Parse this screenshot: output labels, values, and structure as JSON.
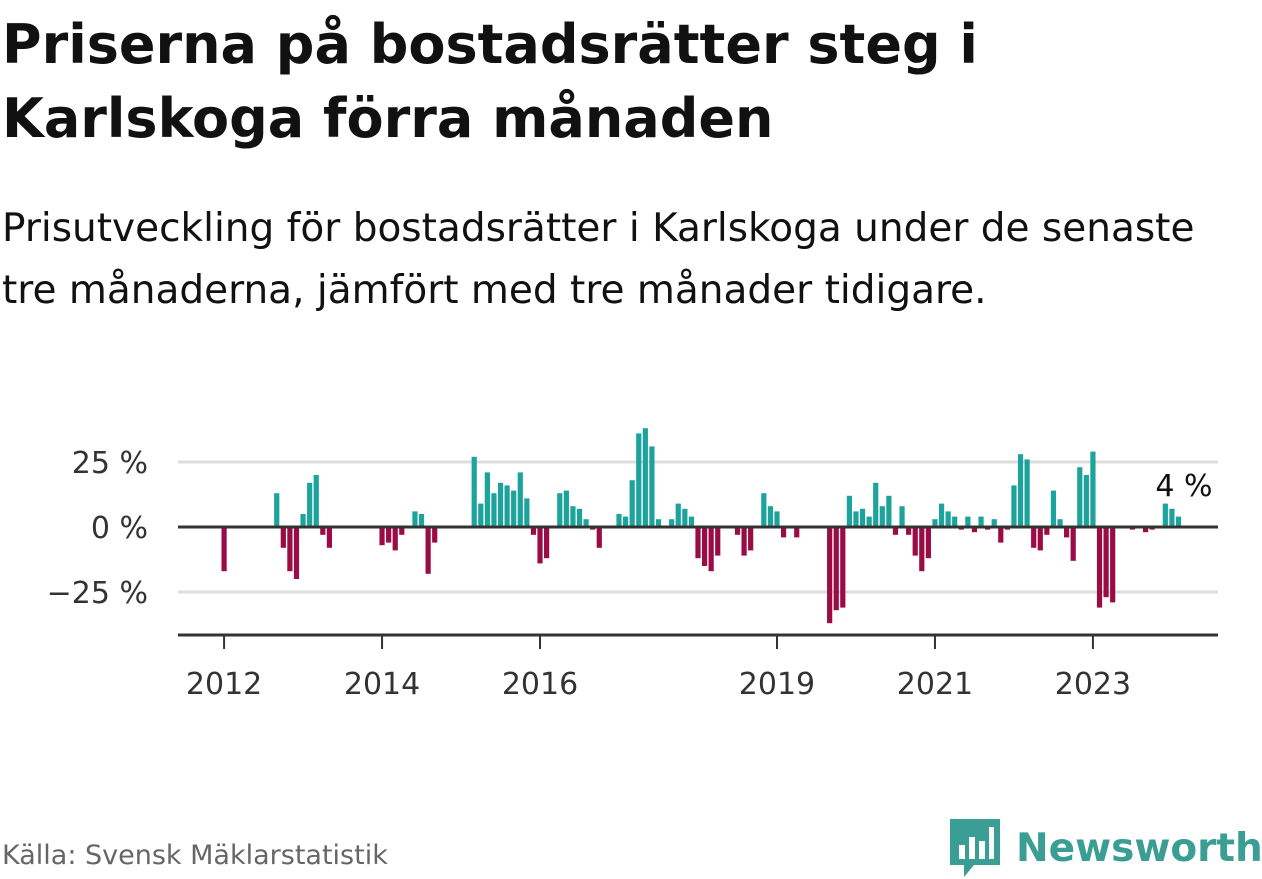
{
  "header": {
    "title": "Priserna på bostadsrätter steg i Karlskoga förra månaden",
    "subtitle": "Prisutveckling för bostadsrätter i Karlskoga under de senaste tre månaderna, jämfört med tre månader tidigare."
  },
  "footer": {
    "source": "Källa: Svensk Mäklarstatistik",
    "brand": "Newsworthy"
  },
  "colors": {
    "positive": "#1ba39c",
    "negative": "#9b0b45",
    "brand": "#3a9e95"
  },
  "chart_data": {
    "type": "bar",
    "title": "Priserna på bostadsrätter steg i Karlskoga förra månaden",
    "subtitle": "Prisutveckling för bostadsrätter i Karlskoga under de senaste tre månaderna, jämfört med tre månader tidigare.",
    "xlabel": "",
    "ylabel": "",
    "unit": "%",
    "ylim": [
      -41,
      37
    ],
    "xlim": [
      "2011-06",
      "2024-08"
    ],
    "yticks": [
      {
        "value": 25,
        "label": "25 %"
      },
      {
        "value": 0,
        "label": "0 %"
      },
      {
        "value": -25,
        "label": "−25 %"
      }
    ],
    "xticks": [
      {
        "value": "2012-01",
        "label": "2012"
      },
      {
        "value": "2014-01",
        "label": "2014"
      },
      {
        "value": "2016-01",
        "label": "2016"
      },
      {
        "value": "2019-01",
        "label": "2019"
      },
      {
        "value": "2021-01",
        "label": "2021"
      },
      {
        "value": "2023-01",
        "label": "2023"
      }
    ],
    "grid": true,
    "annotation": {
      "label": "4 %",
      "x": "2024-01",
      "y": 4
    },
    "values": [
      [
        "2012-01",
        -17
      ],
      [
        "2012-09",
        13
      ],
      [
        "2012-10",
        -8
      ],
      [
        "2012-11",
        -17
      ],
      [
        "2012-12",
        -20
      ],
      [
        "2013-01",
        5
      ],
      [
        "2013-02",
        17
      ],
      [
        "2013-03",
        20
      ],
      [
        "2013-04",
        -3
      ],
      [
        "2013-05",
        -8
      ],
      [
        "2014-01",
        -7
      ],
      [
        "2014-02",
        -6
      ],
      [
        "2014-03",
        -9
      ],
      [
        "2014-04",
        -3
      ],
      [
        "2014-06",
        6
      ],
      [
        "2014-07",
        5
      ],
      [
        "2014-08",
        -18
      ],
      [
        "2014-09",
        -6
      ],
      [
        "2015-03",
        27
      ],
      [
        "2015-04",
        9
      ],
      [
        "2015-05",
        21
      ],
      [
        "2015-06",
        13
      ],
      [
        "2015-07",
        17
      ],
      [
        "2015-08",
        16
      ],
      [
        "2015-09",
        14
      ],
      [
        "2015-10",
        21
      ],
      [
        "2015-11",
        11
      ],
      [
        "2015-12",
        -3
      ],
      [
        "2016-01",
        -14
      ],
      [
        "2016-02",
        -12
      ],
      [
        "2016-03",
        0
      ],
      [
        "2016-04",
        13
      ],
      [
        "2016-05",
        14
      ],
      [
        "2016-06",
        8
      ],
      [
        "2016-07",
        7
      ],
      [
        "2016-08",
        3
      ],
      [
        "2016-09",
        -1
      ],
      [
        "2016-10",
        -8
      ],
      [
        "2017-01",
        5
      ],
      [
        "2017-02",
        4
      ],
      [
        "2017-03",
        18
      ],
      [
        "2017-04",
        36
      ],
      [
        "2017-05",
        38
      ],
      [
        "2017-06",
        31
      ],
      [
        "2017-07",
        3
      ],
      [
        "2017-09",
        3
      ],
      [
        "2017-10",
        9
      ],
      [
        "2017-11",
        7
      ],
      [
        "2017-12",
        4
      ],
      [
        "2018-01",
        -12
      ],
      [
        "2018-02",
        -15
      ],
      [
        "2018-03",
        -17
      ],
      [
        "2018-04",
        -11
      ],
      [
        "2018-07",
        -3
      ],
      [
        "2018-08",
        -11
      ],
      [
        "2018-09",
        -9
      ],
      [
        "2018-11",
        13
      ],
      [
        "2018-12",
        8
      ],
      [
        "2019-01",
        6
      ],
      [
        "2019-02",
        -4
      ],
      [
        "2019-04",
        -4
      ],
      [
        "2019-09",
        -37
      ],
      [
        "2019-10",
        -32
      ],
      [
        "2019-11",
        -31
      ],
      [
        "2019-12",
        12
      ],
      [
        "2020-01",
        6
      ],
      [
        "2020-02",
        7
      ],
      [
        "2020-03",
        4
      ],
      [
        "2020-04",
        17
      ],
      [
        "2020-05",
        8
      ],
      [
        "2020-06",
        12
      ],
      [
        "2020-07",
        -3
      ],
      [
        "2020-08",
        8
      ],
      [
        "2020-09",
        -3
      ],
      [
        "2020-10",
        -11
      ],
      [
        "2020-11",
        -17
      ],
      [
        "2020-12",
        -12
      ],
      [
        "2021-01",
        3
      ],
      [
        "2021-02",
        9
      ],
      [
        "2021-03",
        6
      ],
      [
        "2021-04",
        4
      ],
      [
        "2021-05",
        -1
      ],
      [
        "2021-06",
        4
      ],
      [
        "2021-07",
        -2
      ],
      [
        "2021-08",
        4
      ],
      [
        "2021-09",
        -1
      ],
      [
        "2021-10",
        3
      ],
      [
        "2021-11",
        -6
      ],
      [
        "2021-12",
        -1
      ],
      [
        "2022-01",
        16
      ],
      [
        "2022-02",
        28
      ],
      [
        "2022-03",
        26
      ],
      [
        "2022-04",
        -8
      ],
      [
        "2022-05",
        -9
      ],
      [
        "2022-06",
        -3
      ],
      [
        "2022-07",
        14
      ],
      [
        "2022-08",
        3
      ],
      [
        "2022-09",
        -4
      ],
      [
        "2022-10",
        -13
      ],
      [
        "2022-11",
        23
      ],
      [
        "2022-12",
        20
      ],
      [
        "2023-01",
        29
      ],
      [
        "2023-02",
        -31
      ],
      [
        "2023-03",
        -27
      ],
      [
        "2023-04",
        -29
      ],
      [
        "2023-07",
        -1
      ],
      [
        "2023-09",
        -2
      ],
      [
        "2023-10",
        -1
      ],
      [
        "2023-12",
        9
      ],
      [
        "2024-01",
        7
      ],
      [
        "2024-02",
        4
      ]
    ]
  }
}
